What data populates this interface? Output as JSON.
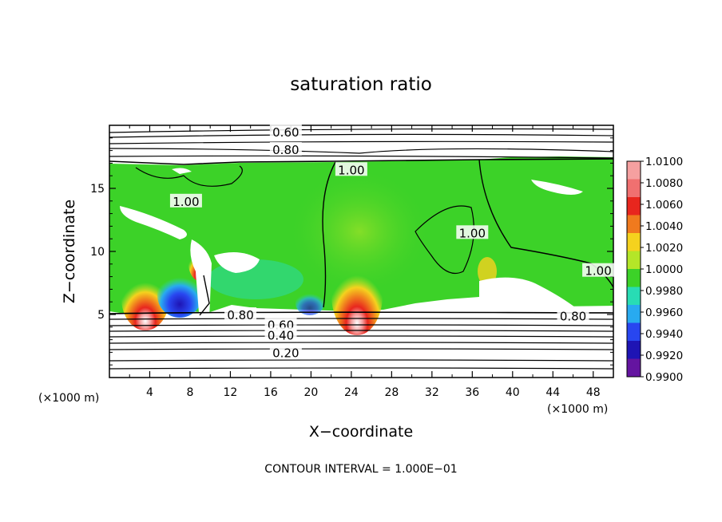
{
  "chart_data": {
    "type": "heatmap",
    "title": "saturation ratio",
    "xlabel": "X−coordinate",
    "ylabel": "Z−coordinate",
    "x_units_left": "(×1000 m)",
    "x_units_right": "(×1000 m)",
    "xlim": [
      0,
      50
    ],
    "ylim": [
      0,
      20
    ],
    "x_ticks": [
      4,
      8,
      12,
      16,
      20,
      24,
      28,
      32,
      36,
      40,
      44,
      48
    ],
    "y_ticks": [
      5,
      10,
      15
    ],
    "grid": false,
    "footer": "CONTOUR INTERVAL = 1.000E−01",
    "colorbar": {
      "placement": "right",
      "labels": [
        "1.0100",
        "1.0080",
        "1.0060",
        "1.0040",
        "1.0020",
        "1.0000",
        "0.9980",
        "0.9960",
        "0.9940",
        "0.9920",
        "0.9900"
      ],
      "colors": [
        "#f5a0a0",
        "#f07070",
        "#e8261e",
        "#f07a1e",
        "#f5d21e",
        "#b4e628",
        "#3cd228",
        "#28dcb4",
        "#28aaf0",
        "#2846f0",
        "#1e14b4",
        "#6414a0"
      ]
    },
    "contour_labels": [
      {
        "text": "0.60",
        "x": 17.5,
        "z": 19.5
      },
      {
        "text": "0.80",
        "x": 17.5,
        "z": 18.1
      },
      {
        "text": "1.00",
        "x": 24.0,
        "z": 16.5
      },
      {
        "text": "1.00",
        "x": 7.6,
        "z": 14.0
      },
      {
        "text": "1.00",
        "x": 36.0,
        "z": 11.5
      },
      {
        "text": "1.00",
        "x": 48.5,
        "z": 8.5
      },
      {
        "text": "0.80",
        "x": 13.0,
        "z": 5.0
      },
      {
        "text": "0.80",
        "x": 46.0,
        "z": 4.9
      },
      {
        "text": "0.60",
        "x": 17.0,
        "z": 4.2
      },
      {
        "text": "0.40",
        "x": 17.0,
        "z": 3.4
      },
      {
        "text": "0.20",
        "x": 17.5,
        "z": 2.0
      }
    ]
  }
}
